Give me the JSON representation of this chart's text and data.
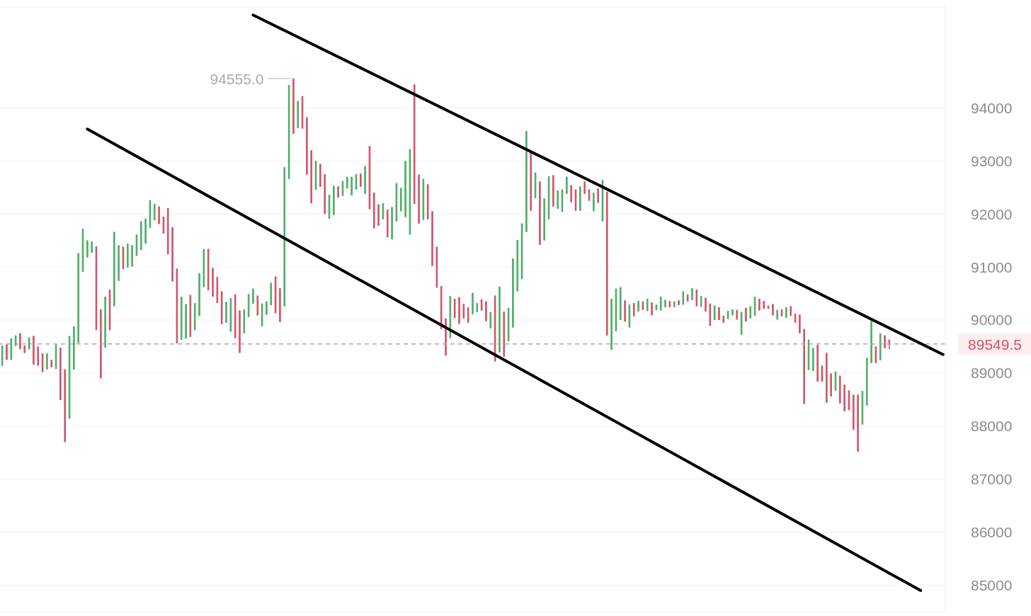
{
  "chart_data": {
    "type": "candlestick",
    "categories": [
      null,
      null,
      null,
      null,
      null,
      null,
      null,
      null,
      null,
      null,
      null,
      null,
      null,
      null,
      null,
      null,
      null,
      null,
      null,
      null,
      null,
      null,
      null,
      null,
      null,
      null,
      null,
      null,
      null,
      null,
      null,
      null,
      null,
      null,
      null,
      null,
      null,
      null,
      null,
      null,
      null,
      null,
      null,
      null,
      null,
      null,
      null,
      null,
      null,
      null,
      null,
      null,
      null,
      null,
      null,
      null,
      null,
      null,
      null,
      null,
      null,
      null,
      null,
      null,
      null,
      null,
      null,
      null,
      null,
      null,
      null,
      null,
      null,
      null,
      null,
      null,
      null,
      null,
      null,
      null,
      null,
      null,
      null,
      null,
      null,
      null,
      null,
      null,
      null,
      null,
      null,
      null,
      null,
      null,
      null,
      null,
      null,
      null,
      null,
      null,
      null,
      null,
      null,
      null,
      null,
      null,
      null,
      null,
      null,
      null,
      null,
      null,
      null,
      null,
      null,
      null,
      null,
      null,
      null,
      null,
      null,
      null,
      null,
      null,
      null,
      null,
      null,
      null,
      null,
      null,
      null,
      null,
      null,
      null,
      null,
      null,
      null,
      null,
      null,
      null,
      null,
      null,
      null,
      null,
      null,
      null,
      null,
      null,
      null,
      null,
      null,
      null,
      null,
      null,
      null,
      null,
      null,
      null,
      null,
      null,
      null,
      null,
      null,
      null,
      null,
      null,
      null,
      null,
      null,
      null,
      null,
      null,
      null,
      null,
      null,
      null,
      null,
      null,
      null,
      null,
      null,
      null,
      null,
      null,
      null,
      null,
      null,
      null,
      null,
      null,
      null,
      null,
      null,
      null,
      null,
      null,
      null,
      null,
      null,
      null,
      null,
      null,
      null,
      null,
      null,
      null,
      null,
      null,
      null,
      null,
      null
    ],
    "ohlc": [
      [
        89140,
        89520,
        89140,
        89520
      ],
      [
        89540,
        89540,
        89250,
        89250
      ],
      [
        89250,
        89650,
        89250,
        89650
      ],
      [
        89510,
        89710,
        89510,
        89710
      ],
      [
        89750,
        89750,
        89450,
        89450
      ],
      [
        89520,
        89520,
        89380,
        89380
      ],
      [
        89450,
        89670,
        89450,
        89670
      ],
      [
        89700,
        89700,
        89160,
        89160
      ],
      [
        89500,
        89500,
        89140,
        89140
      ],
      [
        89370,
        89370,
        89020,
        89020
      ],
      [
        89070,
        89370,
        89070,
        89370
      ],
      [
        89250,
        89250,
        89110,
        89110
      ],
      [
        89080,
        89540,
        89080,
        89540
      ],
      [
        89480,
        89480,
        88490,
        88490
      ],
      [
        89070,
        89070,
        87700,
        87700
      ],
      [
        88140,
        89700,
        88140,
        89700
      ],
      [
        89070,
        89880,
        89070,
        89880
      ],
      [
        89570,
        91260,
        89570,
        91260
      ],
      [
        90910,
        91720,
        90910,
        91720
      ],
      [
        91180,
        91500,
        91180,
        91500
      ],
      [
        91270,
        91480,
        91270,
        91480
      ],
      [
        91390,
        91390,
        89810,
        89810
      ],
      [
        90200,
        90200,
        88900,
        88900
      ],
      [
        89480,
        90440,
        89480,
        90440
      ],
      [
        90570,
        90570,
        89810,
        89810
      ],
      [
        90260,
        91660,
        90260,
        91660
      ],
      [
        90740,
        91410,
        90740,
        91410
      ],
      [
        91380,
        91380,
        90960,
        90960
      ],
      [
        90990,
        91440,
        90990,
        91440
      ],
      [
        91010,
        91410,
        91010,
        91410
      ],
      [
        91210,
        91610,
        91210,
        91610
      ],
      [
        91320,
        91860,
        91320,
        91860
      ],
      [
        91440,
        91910,
        91440,
        91910
      ],
      [
        91740,
        92260,
        91740,
        92260
      ],
      [
        91880,
        92190,
        91880,
        92190
      ],
      [
        92140,
        92140,
        91810,
        91810
      ],
      [
        91950,
        91950,
        91630,
        91630
      ],
      [
        92110,
        92110,
        91240,
        91240
      ],
      [
        91750,
        91750,
        90730,
        90730
      ],
      [
        90970,
        90970,
        89560,
        89560
      ],
      [
        89630,
        90440,
        89630,
        90440
      ],
      [
        89650,
        90300,
        89650,
        90300
      ],
      [
        90470,
        90470,
        89680,
        89680
      ],
      [
        89810,
        90320,
        89810,
        90320
      ],
      [
        90080,
        90880,
        90080,
        90880
      ],
      [
        90620,
        91340,
        90620,
        91340
      ],
      [
        91340,
        91340,
        90560,
        90560
      ],
      [
        90980,
        90980,
        90440,
        90440
      ],
      [
        90810,
        90810,
        90320,
        90320
      ],
      [
        90540,
        90540,
        89920,
        89920
      ],
      [
        89950,
        90340,
        89950,
        90340
      ],
      [
        89780,
        90410,
        89780,
        90410
      ],
      [
        90480,
        90480,
        89660,
        89660
      ],
      [
        90180,
        90180,
        89380,
        89380
      ],
      [
        89750,
        90200,
        89750,
        90200
      ],
      [
        90060,
        90490,
        90060,
        90490
      ],
      [
        90310,
        90590,
        90310,
        90590
      ],
      [
        90460,
        90460,
        90090,
        90090
      ],
      [
        89880,
        90310,
        89880,
        90310
      ],
      [
        90100,
        90350,
        90100,
        90350
      ],
      [
        90280,
        90700,
        90280,
        90700
      ],
      [
        90820,
        90820,
        90130,
        90130
      ],
      [
        90600,
        90600,
        89960,
        89960
      ],
      [
        90260,
        92880,
        90260,
        92880
      ],
      [
        92660,
        94430,
        92660,
        94430
      ],
      [
        94555,
        94555,
        93510,
        93510
      ],
      [
        93620,
        94130,
        93620,
        94130
      ],
      [
        94220,
        94220,
        93610,
        93610
      ],
      [
        93820,
        93820,
        92740,
        92740
      ],
      [
        93200,
        93200,
        92200,
        92200
      ],
      [
        92460,
        93000,
        92460,
        93000
      ],
      [
        92940,
        92940,
        92510,
        92510
      ],
      [
        92750,
        92750,
        92000,
        92000
      ],
      [
        91910,
        92360,
        91910,
        92360
      ],
      [
        91980,
        92530,
        91980,
        92530
      ],
      [
        92520,
        92520,
        92310,
        92310
      ],
      [
        92340,
        92620,
        92340,
        92620
      ],
      [
        92480,
        92700,
        92480,
        92700
      ],
      [
        92350,
        92700,
        92350,
        92700
      ],
      [
        92460,
        92750,
        92460,
        92750
      ],
      [
        92760,
        92760,
        92510,
        92510
      ],
      [
        92380,
        92900,
        92380,
        92900
      ],
      [
        93280,
        93280,
        92090,
        92090
      ],
      [
        92400,
        92400,
        91730,
        91730
      ],
      [
        92180,
        92180,
        91780,
        91780
      ],
      [
        91900,
        92200,
        91900,
        92200
      ],
      [
        92080,
        92080,
        91560,
        91560
      ],
      [
        91520,
        92130,
        91520,
        92130
      ],
      [
        91860,
        92580,
        91860,
        92580
      ],
      [
        92050,
        92490,
        92050,
        92490
      ],
      [
        91940,
        93000,
        91940,
        93000
      ],
      [
        91610,
        93220,
        91610,
        93220
      ],
      [
        94440,
        94440,
        92190,
        92190
      ],
      [
        92740,
        92740,
        91820,
        91820
      ],
      [
        91890,
        92660,
        91890,
        92660
      ],
      [
        92560,
        92560,
        91900,
        91900
      ],
      [
        92050,
        92050,
        91020,
        91020
      ],
      [
        91380,
        91380,
        90610,
        90610
      ],
      [
        90640,
        90640,
        89830,
        89830
      ],
      [
        90030,
        90030,
        89330,
        89330
      ],
      [
        89660,
        90450,
        89660,
        90450
      ],
      [
        90400,
        90400,
        90040,
        90040
      ],
      [
        90430,
        90430,
        89930,
        89930
      ],
      [
        90300,
        90300,
        90030,
        90030
      ],
      [
        90240,
        90240,
        89950,
        89950
      ],
      [
        90110,
        90510,
        90110,
        90510
      ],
      [
        90150,
        90320,
        90150,
        90320
      ],
      [
        90390,
        90390,
        90180,
        90180
      ],
      [
        90350,
        90350,
        89980,
        89980
      ],
      [
        89840,
        90150,
        89840,
        90150
      ],
      [
        90460,
        90460,
        89220,
        89220
      ],
      [
        89390,
        90630,
        89390,
        90630
      ],
      [
        90160,
        90160,
        89310,
        89310
      ],
      [
        89600,
        90230,
        89600,
        90230
      ],
      [
        89860,
        91160,
        89860,
        91160
      ],
      [
        90540,
        91510,
        90540,
        91510
      ],
      [
        90770,
        91820,
        90770,
        91820
      ],
      [
        91660,
        93560,
        91660,
        93560
      ],
      [
        93150,
        93150,
        92060,
        92060
      ],
      [
        92300,
        92780,
        92300,
        92780
      ],
      [
        92610,
        92610,
        91420,
        91420
      ],
      [
        91500,
        92290,
        91500,
        92290
      ],
      [
        91900,
        92710,
        91900,
        92710
      ],
      [
        92730,
        92730,
        92140,
        92140
      ],
      [
        92100,
        92440,
        92100,
        92440
      ],
      [
        92040,
        92460,
        92040,
        92460
      ],
      [
        92380,
        92700,
        92380,
        92700
      ],
      [
        92540,
        92540,
        92220,
        92220
      ],
      [
        92460,
        92460,
        92060,
        92060
      ],
      [
        92060,
        92520,
        92060,
        92520
      ],
      [
        92610,
        92610,
        92380,
        92380
      ],
      [
        92460,
        92460,
        92250,
        92250
      ],
      [
        92050,
        92400,
        92050,
        92400
      ],
      [
        92480,
        92480,
        92210,
        92210
      ],
      [
        91860,
        92640,
        91860,
        92640
      ],
      [
        92420,
        92420,
        89710,
        89710
      ],
      [
        89440,
        90400,
        89440,
        90400
      ],
      [
        89790,
        90590,
        89790,
        90590
      ],
      [
        90000,
        90620,
        90000,
        90620
      ],
      [
        90370,
        90370,
        89970,
        89970
      ],
      [
        89860,
        90290,
        89860,
        90290
      ],
      [
        90320,
        90320,
        90070,
        90070
      ],
      [
        90160,
        90360,
        90160,
        90360
      ],
      [
        90350,
        90350,
        90190,
        90190
      ],
      [
        90170,
        90400,
        90170,
        90400
      ],
      [
        90330,
        90330,
        90090,
        90090
      ],
      [
        90190,
        90290,
        90190,
        90290
      ],
      [
        90180,
        90440,
        90180,
        90440
      ],
      [
        90240,
        90380,
        90240,
        90380
      ],
      [
        90360,
        90360,
        90240,
        90240
      ],
      [
        90240,
        90350,
        90240,
        90350
      ],
      [
        90370,
        90370,
        90280,
        90280
      ],
      [
        90290,
        90540,
        90290,
        90540
      ],
      [
        90480,
        90480,
        90350,
        90350
      ],
      [
        90380,
        90600,
        90380,
        90600
      ],
      [
        90570,
        90570,
        90260,
        90260
      ],
      [
        90250,
        90450,
        90250,
        90450
      ],
      [
        90420,
        90420,
        90160,
        90160
      ],
      [
        90310,
        90310,
        89890,
        89890
      ],
      [
        90000,
        90270,
        90000,
        90270
      ],
      [
        90240,
        90240,
        90000,
        90000
      ],
      [
        90080,
        90080,
        89950,
        89950
      ],
      [
        90020,
        90170,
        90020,
        90170
      ],
      [
        90090,
        90200,
        90090,
        90200
      ],
      [
        90190,
        90190,
        90010,
        90010
      ],
      [
        89720,
        90150,
        89720,
        90150
      ],
      [
        90230,
        90230,
        89970,
        89970
      ],
      [
        90030,
        90260,
        90030,
        90260
      ],
      [
        90080,
        90440,
        90080,
        90440
      ],
      [
        90400,
        90400,
        90180,
        90180
      ],
      [
        90360,
        90360,
        90210,
        90210
      ],
      [
        90270,
        90270,
        90210,
        90210
      ],
      [
        90300,
        90300,
        90090,
        90090
      ],
      [
        90010,
        90190,
        90010,
        90190
      ],
      [
        90200,
        90200,
        90070,
        90070
      ],
      [
        90040,
        90240,
        90040,
        90240
      ],
      [
        90260,
        90260,
        90080,
        90080
      ],
      [
        90120,
        90120,
        89950,
        89950
      ],
      [
        90100,
        90100,
        89750,
        89750
      ],
      [
        89830,
        89830,
        88420,
        88420
      ],
      [
        89060,
        89630,
        89060,
        89630
      ],
      [
        89040,
        89470,
        89040,
        89470
      ],
      [
        89530,
        89530,
        88840,
        88840
      ],
      [
        89140,
        89140,
        88840,
        88840
      ],
      [
        89380,
        89380,
        88440,
        88440
      ],
      [
        88990,
        88990,
        88560,
        88560
      ],
      [
        88670,
        89030,
        88670,
        89030
      ],
      [
        88950,
        88950,
        88430,
        88430
      ],
      [
        88780,
        88780,
        88280,
        88280
      ],
      [
        88670,
        88670,
        88300,
        88300
      ],
      [
        88590,
        88590,
        87930,
        87930
      ],
      [
        88590,
        88590,
        87520,
        87520
      ],
      [
        88030,
        88660,
        88030,
        88660
      ],
      [
        88390,
        89290,
        88390,
        89290
      ],
      [
        89190,
        89980,
        89190,
        89980
      ],
      [
        89500,
        89500,
        89190,
        89190
      ],
      [
        89240,
        89750,
        89240,
        89750
      ],
      [
        89710,
        89710,
        89470,
        89470
      ],
      [
        89630,
        89630,
        89450,
        89549.5
      ],
      null,
      null,
      null,
      null,
      null,
      null,
      null,
      null,
      null,
      null,
      null,
      null
    ],
    "colors": [
      "#4fae6a",
      "#d0566a",
      "#4fae6a",
      "#4fae6a",
      "#d0566a",
      "#d0566a",
      "#4fae6a",
      "#d0566a",
      "#d0566a",
      "#d0566a",
      "#4fae6a",
      "#d0566a",
      "#4fae6a",
      "#d0566a",
      "#d0566a",
      "#4fae6a",
      "#4fae6a",
      "#4fae6a",
      "#4fae6a",
      "#4fae6a",
      "#4fae6a",
      "#d0566a",
      "#d0566a",
      "#4fae6a",
      "#d0566a",
      "#4fae6a",
      "#4fae6a",
      "#d0566a",
      "#4fae6a",
      "#4fae6a",
      "#4fae6a",
      "#4fae6a",
      "#4fae6a",
      "#4fae6a",
      "#4fae6a",
      "#d0566a",
      "#d0566a",
      "#d0566a",
      "#d0566a",
      "#d0566a",
      "#4fae6a",
      "#4fae6a",
      "#d0566a",
      "#4fae6a",
      "#4fae6a",
      "#4fae6a",
      "#d0566a",
      "#d0566a",
      "#d0566a",
      "#d0566a",
      "#4fae6a",
      "#4fae6a",
      "#d0566a",
      "#d0566a",
      "#4fae6a",
      "#4fae6a",
      "#4fae6a",
      "#d0566a",
      "#4fae6a",
      "#4fae6a",
      "#4fae6a",
      "#d0566a",
      "#d0566a",
      "#4fae6a",
      "#4fae6a",
      "#d0566a",
      "#4fae6a",
      "#d0566a",
      "#d0566a",
      "#d0566a",
      "#4fae6a",
      "#d0566a",
      "#d0566a",
      "#4fae6a",
      "#4fae6a",
      "#d0566a",
      "#4fae6a",
      "#4fae6a",
      "#4fae6a",
      "#4fae6a",
      "#d0566a",
      "#4fae6a",
      "#d0566a",
      "#d0566a",
      "#d0566a",
      "#4fae6a",
      "#d0566a",
      "#4fae6a",
      "#4fae6a",
      "#4fae6a",
      "#4fae6a",
      "#4fae6a",
      "#d0566a",
      "#d0566a",
      "#4fae6a",
      "#d0566a",
      "#d0566a",
      "#d0566a",
      "#d0566a",
      "#d0566a",
      "#4fae6a",
      "#d0566a",
      "#d0566a",
      "#d0566a",
      "#d0566a",
      "#4fae6a",
      "#4fae6a",
      "#d0566a",
      "#d0566a",
      "#4fae6a",
      "#d0566a",
      "#4fae6a",
      "#d0566a",
      "#4fae6a",
      "#4fae6a",
      "#4fae6a",
      "#4fae6a",
      "#4fae6a",
      "#d0566a",
      "#4fae6a",
      "#d0566a",
      "#4fae6a",
      "#4fae6a",
      "#d0566a",
      "#4fae6a",
      "#4fae6a",
      "#4fae6a",
      "#d0566a",
      "#d0566a",
      "#4fae6a",
      "#d0566a",
      "#d0566a",
      "#4fae6a",
      "#d0566a",
      "#4fae6a",
      "#d0566a",
      "#4fae6a",
      "#4fae6a",
      "#4fae6a",
      "#d0566a",
      "#4fae6a",
      "#d0566a",
      "#4fae6a",
      "#d0566a",
      "#4fae6a",
      "#d0566a",
      "#4fae6a",
      "#4fae6a",
      "#4fae6a",
      "#d0566a",
      "#4fae6a",
      "#d0566a",
      "#4fae6a",
      "#d0566a",
      "#4fae6a",
      "#d0566a",
      "#4fae6a",
      "#d0566a",
      "#d0566a",
      "#4fae6a",
      "#d0566a",
      "#d0566a",
      "#4fae6a",
      "#4fae6a",
      "#d0566a",
      "#4fae6a",
      "#d0566a",
      "#4fae6a",
      "#4fae6a",
      "#d0566a",
      "#d0566a",
      "#d0566a",
      "#d0566a",
      "#4fae6a",
      "#d0566a",
      "#4fae6a",
      "#d0566a",
      "#d0566a",
      "#d0566a",
      "#d0566a",
      "#4fae6a",
      "#4fae6a",
      "#d0566a",
      "#d0566a",
      "#d0566a",
      "#d0566a",
      "#4fae6a",
      "#d0566a",
      "#d0566a",
      "#d0566a",
      "#d0566a",
      "#d0566a",
      "#4fae6a",
      "#4fae6a",
      "#4fae6a",
      "#d0566a",
      "#4fae6a",
      "#d0566a",
      "#d0566a",
      null,
      null,
      null,
      null,
      null,
      null,
      null,
      null,
      null,
      null,
      null,
      null
    ],
    "series": [
      {
        "type": "line",
        "color": "#000000",
        "values": [
          null,
          null,
          null,
          null,
          null,
          null,
          null,
          null,
          null,
          null,
          null,
          null,
          null,
          null,
          null,
          null,
          null,
          null,
          null,
          93600,
          null,
          null,
          null,
          null,
          null,
          null,
          null,
          null,
          null,
          null,
          null,
          null,
          null,
          null,
          null,
          null,
          null,
          null,
          null,
          null,
          null,
          null,
          null,
          null,
          null,
          null,
          null,
          null,
          null,
          null,
          null,
          null,
          null,
          null,
          null,
          null,
          null,
          null,
          null,
          null,
          null,
          null,
          null,
          null,
          null,
          null,
          null,
          null,
          null,
          null,
          null,
          null,
          null,
          null,
          null,
          null,
          null,
          null,
          null,
          null,
          null,
          null,
          null,
          null,
          null,
          null,
          null,
          null,
          null,
          null,
          null,
          null,
          null,
          null,
          null,
          null,
          null,
          null,
          null,
          null,
          null,
          null,
          null,
          null,
          null,
          null,
          null,
          null,
          null,
          null,
          null,
          null,
          null,
          null,
          null,
          null,
          null,
          null,
          null,
          null,
          null,
          null,
          null,
          null,
          null,
          null,
          null,
          null,
          null,
          null,
          null,
          null,
          null,
          null,
          null,
          null,
          null,
          null,
          null,
          null,
          null,
          null,
          null,
          null,
          null,
          null,
          null,
          null,
          null,
          null,
          null,
          null,
          null,
          null,
          null,
          null,
          null,
          null,
          null,
          null,
          null,
          null,
          null,
          null,
          null,
          null,
          null,
          null,
          null,
          null,
          null,
          null,
          null,
          null,
          null,
          null,
          null,
          null,
          null,
          null,
          null,
          null,
          null,
          null,
          null,
          null,
          null,
          null,
          null,
          null,
          null,
          null,
          null,
          null,
          null,
          null,
          null,
          null,
          null,
          null,
          null,
          null,
          null,
          null,
          null,
          84900,
          null,
          null,
          null,
          null,
          null
        ]
      },
      {
        "type": "line",
        "color": "#000000",
        "values": [
          null,
          null,
          null,
          null,
          null,
          null,
          null,
          null,
          null,
          null,
          null,
          null,
          null,
          null,
          null,
          null,
          null,
          null,
          null,
          null,
          null,
          null,
          null,
          null,
          null,
          null,
          null,
          null,
          null,
          null,
          null,
          null,
          null,
          null,
          null,
          null,
          null,
          null,
          null,
          null,
          null,
          null,
          null,
          null,
          null,
          null,
          null,
          null,
          null,
          null,
          null,
          null,
          null,
          null,
          null,
          null,
          95750,
          null,
          null,
          null,
          null,
          null,
          null,
          null,
          null,
          null,
          null,
          null,
          null,
          null,
          null,
          null,
          null,
          null,
          null,
          null,
          null,
          null,
          null,
          null,
          null,
          null,
          null,
          null,
          null,
          null,
          null,
          null,
          null,
          null,
          null,
          null,
          null,
          null,
          null,
          null,
          null,
          null,
          null,
          null,
          null,
          null,
          null,
          null,
          null,
          null,
          null,
          null,
          null,
          null,
          null,
          null,
          null,
          null,
          null,
          null,
          null,
          null,
          null,
          null,
          null,
          null,
          null,
          null,
          null,
          null,
          null,
          null,
          null,
          null,
          null,
          null,
          null,
          null,
          null,
          null,
          null,
          null,
          null,
          null,
          null,
          null,
          null,
          null,
          null,
          null,
          null,
          null,
          null,
          null,
          null,
          null,
          null,
          null,
          null,
          null,
          null,
          null,
          null,
          null,
          null,
          null,
          null,
          null,
          null,
          null,
          null,
          null,
          null,
          null,
          null,
          null,
          null,
          null,
          null,
          null,
          null,
          null,
          null,
          null,
          null,
          null,
          null,
          null,
          null,
          null,
          null,
          null,
          null,
          null,
          null,
          null,
          null,
          null,
          null,
          null,
          null,
          null,
          null,
          null,
          null,
          null,
          null,
          null,
          null,
          null,
          null,
          null,
          null,
          null,
          89350
        ]
      }
    ],
    "ylim": [
      84500,
      95900
    ],
    "yticks": [
      85000,
      86000,
      87000,
      88000,
      89000,
      90000,
      91000,
      92000,
      93000,
      94000
    ],
    "grid": "y",
    "tick_labels": "y",
    "ref_lines": [
      {
        "axis": "y",
        "value": 89549.5,
        "label": "89549.5",
        "color": "#aaaaaa",
        "line_style": "dashed"
      }
    ],
    "annotations": [
      "94555.0"
    ]
  }
}
